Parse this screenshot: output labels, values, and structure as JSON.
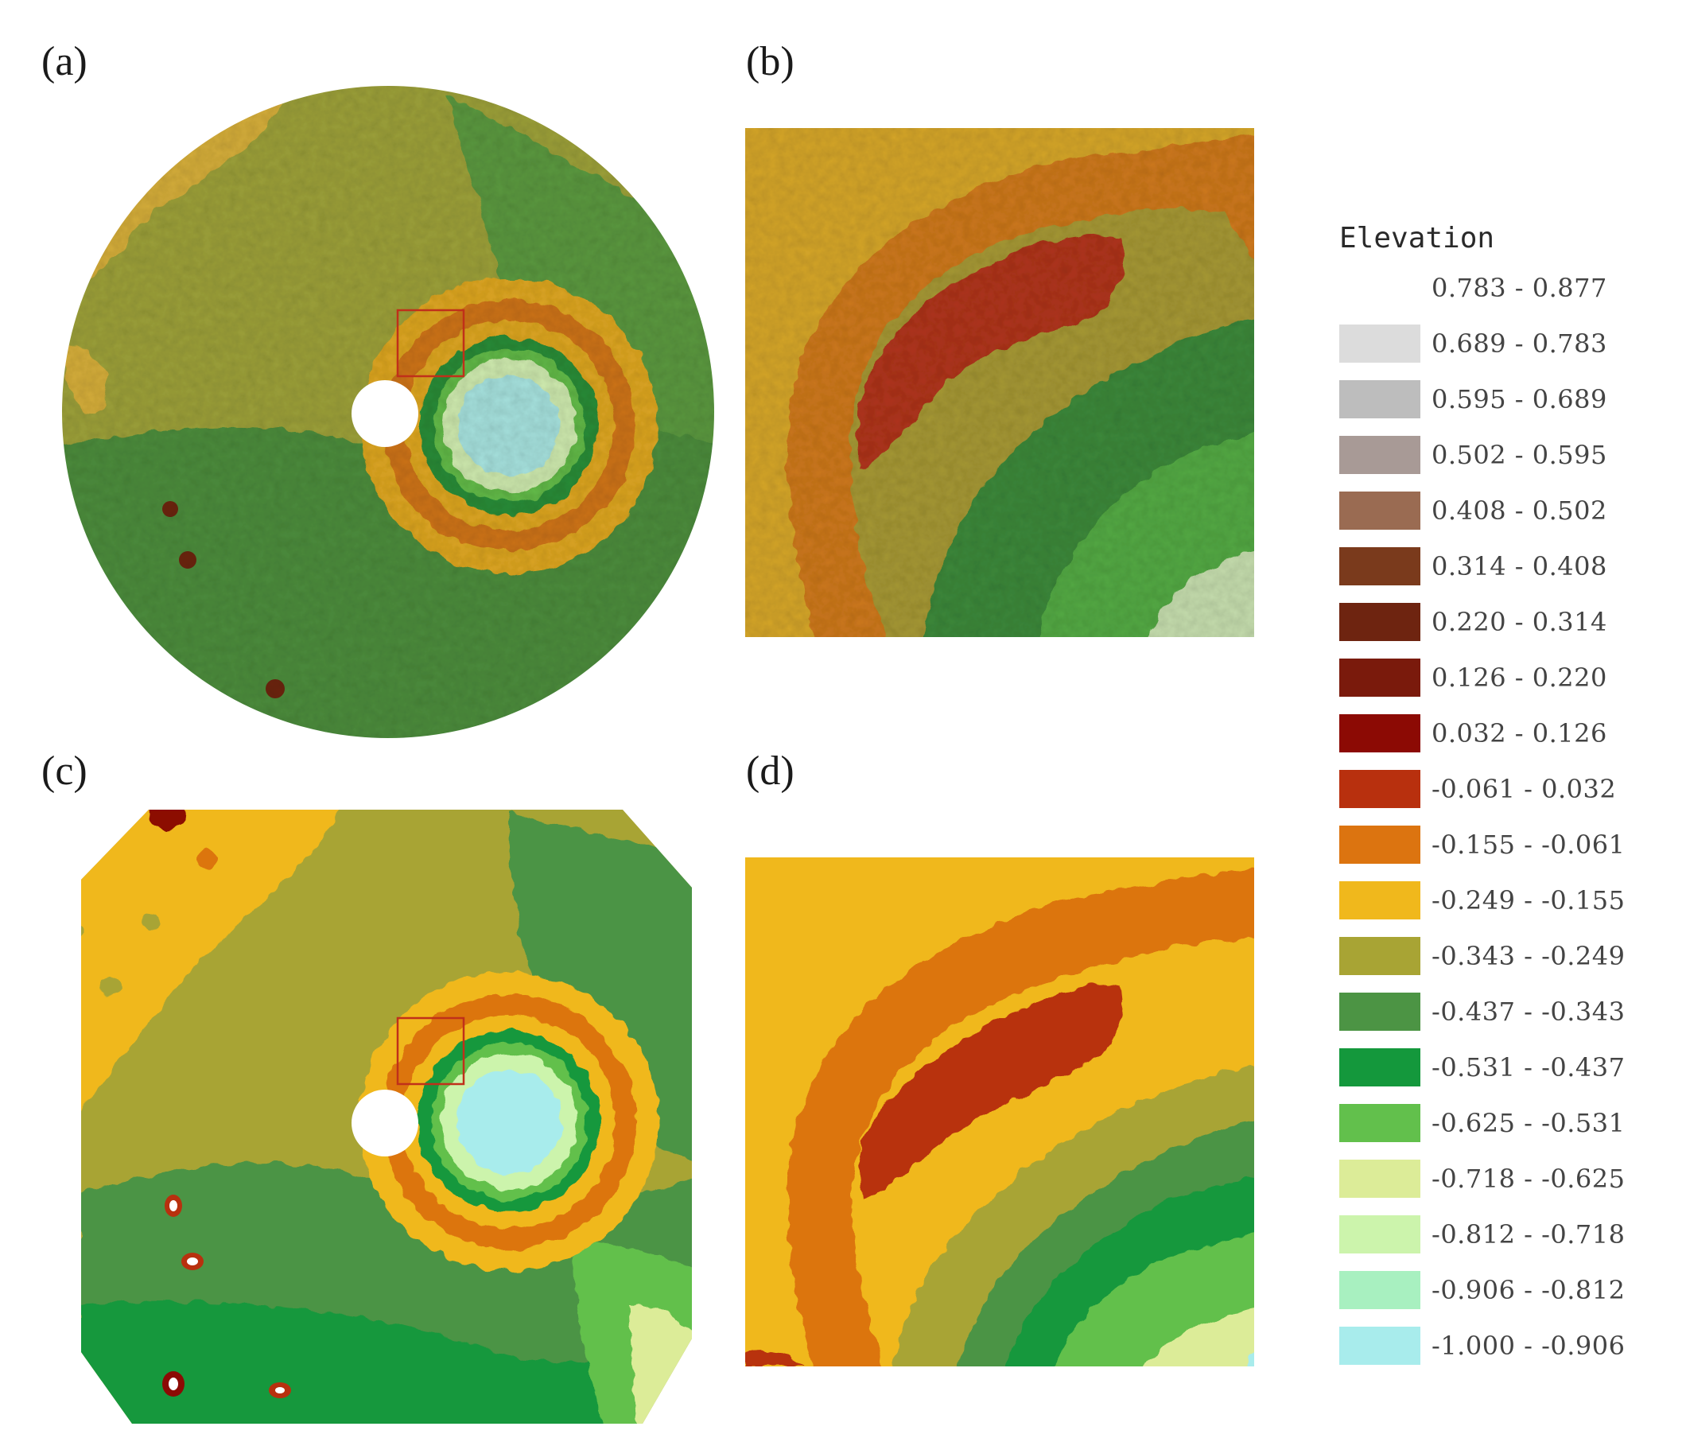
{
  "panels": {
    "a": {
      "label": "(a)"
    },
    "b": {
      "label": "(b)"
    },
    "c": {
      "label": "(c)"
    },
    "d": {
      "label": "(d)"
    }
  },
  "legend": {
    "title": "Elevation",
    "items": [
      {
        "range": "0.783 - 0.877",
        "color": "#ffffff"
      },
      {
        "range": "0.689 - 0.783",
        "color": "#dcdcdc"
      },
      {
        "range": "0.595 - 0.689",
        "color": "#bdbdbd"
      },
      {
        "range": "0.502 - 0.595",
        "color": "#a89a96"
      },
      {
        "range": "0.408 - 0.502",
        "color": "#9a6b52"
      },
      {
        "range": "0.314 - 0.408",
        "color": "#7a3a1c"
      },
      {
        "range": "0.220 - 0.314",
        "color": "#6e2410"
      },
      {
        "range": "0.126 - 0.220",
        "color": "#7a1a0c"
      },
      {
        "range": "0.032 - 0.126",
        "color": "#8c0a04"
      },
      {
        "range": "-0.061 - 0.032",
        "color": "#b8300e"
      },
      {
        "range": "-0.155 - -0.061",
        "color": "#dc7410"
      },
      {
        "range": "-0.249 - -0.155",
        "color": "#f0b81c"
      },
      {
        "range": "-0.343 - -0.249",
        "color": "#a8a434"
      },
      {
        "range": "-0.437 - -0.343",
        "color": "#4c9444"
      },
      {
        "range": "-0.531 - -0.437",
        "color": "#14983c"
      },
      {
        "range": "-0.625 - -0.531",
        "color": "#62c04c"
      },
      {
        "range": "-0.718 - -0.625",
        "color": "#dcec98"
      },
      {
        "range": "-0.812 - -0.718",
        "color": "#ccf4ac"
      },
      {
        "range": "-0.906 - -0.812",
        "color": "#a8f0c0"
      },
      {
        "range": "-1.000 - -0.906",
        "color": "#a8ecec"
      }
    ]
  }
}
